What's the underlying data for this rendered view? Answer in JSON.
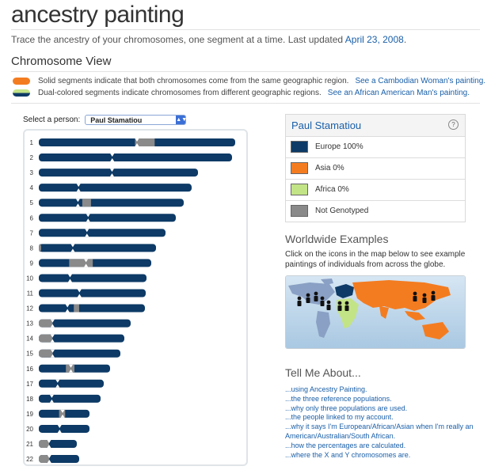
{
  "header": {
    "title": "ancestry painting",
    "subtitle_text": "Trace the ancestry of your chromosomes, one segment at a time. Last updated",
    "subtitle_date": "April 23, 2008",
    "subtitle_end": "."
  },
  "chromosome_view": {
    "title": "Chromosome View",
    "legend": [
      {
        "text": "Solid segments indicate that both chromosomes come from the same geographic region.",
        "link": "See a Cambodian Woman's painting."
      },
      {
        "text": "Dual-colored segments indicate chromosomes from different geographic regions.",
        "link": "See an African American Man's painting."
      }
    ],
    "selector_label": "Select a person:",
    "selected_person": "Paul Stamatiou",
    "chromosomes": [
      {
        "n": "1",
        "len": 248,
        "cen": 0.5,
        "g": [
          0.49,
          0.59
        ]
      },
      {
        "n": "2",
        "len": 244,
        "cen": 0.38
      },
      {
        "n": "3",
        "len": 201,
        "cen": 0.46
      },
      {
        "n": "4",
        "len": 193,
        "cen": 0.26
      },
      {
        "n": "5",
        "len": 183,
        "cen": 0.27,
        "g2": [
          0.3,
          0.36
        ]
      },
      {
        "n": "6",
        "len": 173,
        "cen": 0.36
      },
      {
        "n": "7",
        "len": 160,
        "cen": 0.38
      },
      {
        "n": "8",
        "len": 148,
        "cen": 0.29,
        "g": [
          0.0,
          0.02
        ]
      },
      {
        "n": "9",
        "len": 142,
        "cen": 0.42,
        "g": [
          0.27,
          0.48
        ]
      },
      {
        "n": "10",
        "len": 136,
        "cen": 0.29
      },
      {
        "n": "11",
        "len": 135,
        "cen": 0.38
      },
      {
        "n": "12",
        "len": 134,
        "cen": 0.27,
        "g2": [
          0.33,
          0.38
        ]
      },
      {
        "n": "13",
        "len": 116,
        "cen": 0.15,
        "g": [
          0.0,
          0.15
        ]
      },
      {
        "n": "14",
        "len": 108,
        "cen": 0.16,
        "g": [
          0.0,
          0.16
        ]
      },
      {
        "n": "15",
        "len": 103,
        "cen": 0.17,
        "g": [
          0.0,
          0.17
        ]
      },
      {
        "n": "16",
        "len": 90,
        "cen": 0.45,
        "g": [
          0.38,
          0.5
        ]
      },
      {
        "n": "17",
        "len": 82,
        "cen": 0.29
      },
      {
        "n": "18",
        "len": 78,
        "cen": 0.21
      },
      {
        "n": "19",
        "len": 64,
        "cen": 0.47,
        "g": [
          0.4,
          0.52
        ]
      },
      {
        "n": "20",
        "len": 64,
        "cen": 0.41
      },
      {
        "n": "21",
        "len": 48,
        "cen": 0.27,
        "g": [
          0.0,
          0.27
        ]
      },
      {
        "n": "22",
        "len": 51,
        "cen": 0.26,
        "g": [
          0.0,
          0.26
        ]
      }
    ]
  },
  "summary": {
    "name": "Paul Stamatiou",
    "rows": [
      {
        "label": "Europe 100%",
        "color": "#0d3a66"
      },
      {
        "label": "Asia 0%",
        "color": "#f47c20"
      },
      {
        "label": "Africa 0%",
        "color": "#c3e387"
      },
      {
        "label": "Not Genotyped",
        "color": "#8a8a8a"
      }
    ]
  },
  "colors": {
    "europe": "#0d3a66",
    "gray": "#8a8a8a",
    "asia": "#f47c20",
    "africa": "#c3e387"
  },
  "worldwide": {
    "title": "Worldwide Examples",
    "text": "Click on the icons in the map below to see example paintings of individuals from across the globe."
  },
  "tell_me": {
    "title": "Tell Me About...",
    "items": [
      "...using Ancestry Painting.",
      "...the three reference populations.",
      "...why only three populations are used.",
      "...the people linked to my account.",
      "...why it says I'm European/African/Asian when I'm really an American/Australian/South African.",
      "...how the percentages are calculated.",
      "...where the X and Y chromosomes are."
    ]
  }
}
